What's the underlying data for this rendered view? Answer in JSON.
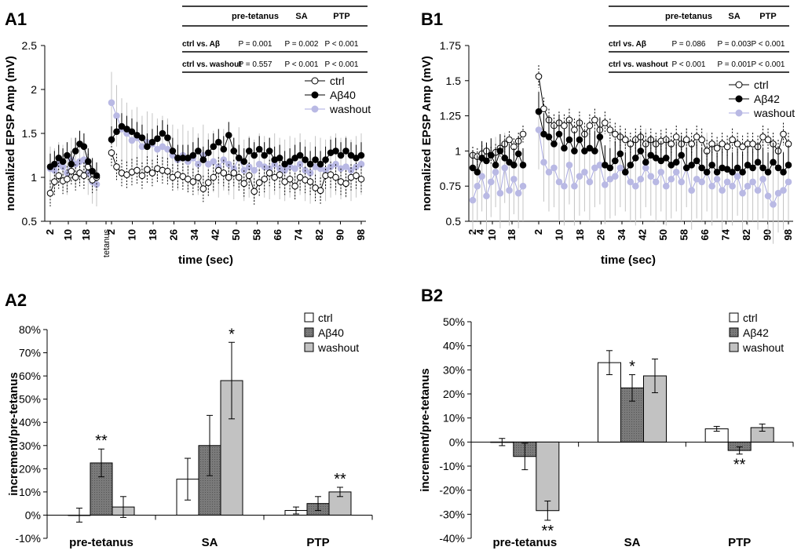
{
  "colors": {
    "ctrl_fill": "#ffffff",
    "abeta_fill": "#000000",
    "washout_line": "#a8a8e0",
    "washout_fill": "#b9b9e4",
    "washout_errbar": "#c4c4c4",
    "bar_abeta": "#7a7a7a",
    "bar_washout": "#c2c2c2",
    "axis": "#000000"
  },
  "chart_data": [
    {
      "panel": "A1",
      "type": "scatter",
      "ylabel": "normalized EPSP Amp (mV)",
      "xlabel": "time (sec)",
      "ylim": [
        0.5,
        2.5
      ],
      "yticks": [
        "0.5",
        "1",
        "1.5",
        "2",
        "2.5"
      ],
      "xticks": [
        "2",
        "10",
        "18",
        "tetanus",
        "2",
        "10",
        "18",
        "26",
        "34",
        "42",
        "50",
        "58",
        "66",
        "74",
        "82",
        "90",
        "98"
      ],
      "segments": [
        {
          "label": "pre-tetanus",
          "n_points": 12,
          "t_start": 2,
          "t_step": 2
        },
        {
          "label": "SA",
          "n_points": 50,
          "t_start": 2,
          "t_step": 2
        }
      ],
      "epoch_labels": {
        "pre": "pre-tetanus",
        "sa": "SA",
        "ptp": "PTP",
        "tetanus": "tetanus"
      },
      "legend": [
        "ctrl",
        "Aβ40",
        "washout"
      ],
      "series": [
        {
          "name": "ctrl",
          "pre": [
            0.82,
            0.95,
            1.02,
            0.96,
            0.98,
            1.07,
            1.0,
            1.05,
            1.02,
            1.12,
            0.97,
            1.0
          ],
          "post": [
            1.28,
            1.12,
            1.05,
            1.03,
            1.06,
            1.08,
            1.02,
            1.09,
            1.05,
            1.1,
            1.08,
            1.07,
            1.0,
            1.03,
            1.01,
            0.98,
            0.95,
            1.0,
            0.87,
            0.94,
            1.0,
            1.08,
            1.05,
            1.0,
            1.05,
            1.0,
            0.93,
            1.02,
            0.84,
            0.94,
            0.98,
            1.05,
            1.0,
            1.03,
            0.95,
            0.98,
            0.9,
            1.0,
            0.97,
            0.95,
            0.88,
            0.85,
            1.02,
            1.03,
            1.0,
            0.95,
            0.93,
            1.0,
            1.02,
            0.98
          ],
          "err_pre": 0.15,
          "err_post": 0.15
        },
        {
          "name": "Aβ40",
          "pre": [
            1.12,
            1.15,
            1.22,
            1.18,
            1.25,
            1.15,
            1.3,
            1.38,
            1.35,
            1.18,
            1.07,
            1.02
          ],
          "post": [
            1.43,
            1.52,
            1.58,
            1.55,
            1.52,
            1.48,
            1.45,
            1.35,
            1.4,
            1.44,
            1.5,
            1.45,
            1.3,
            1.22,
            1.22,
            1.22,
            1.25,
            1.3,
            1.2,
            1.28,
            1.35,
            1.4,
            1.32,
            1.48,
            1.3,
            1.22,
            1.18,
            1.3,
            1.25,
            1.32,
            1.25,
            1.3,
            1.2,
            1.22,
            1.15,
            1.18,
            1.22,
            1.25,
            1.2,
            1.15,
            1.2,
            1.15,
            1.2,
            1.28,
            1.3,
            1.25,
            1.3,
            1.25,
            1.22,
            1.25
          ],
          "err_pre": 0.15,
          "err_post": 0.15
        },
        {
          "name": "washout",
          "pre": [
            1.1,
            1.08,
            1.15,
            1.12,
            1.05,
            1.2,
            1.15,
            1.18,
            1.2,
            1.05,
            0.95,
            0.92
          ],
          "post": [
            1.85,
            1.7,
            1.55,
            1.5,
            1.42,
            1.45,
            1.35,
            1.4,
            1.38,
            1.32,
            1.35,
            1.32,
            1.25,
            1.2,
            1.25,
            1.18,
            1.22,
            1.15,
            1.25,
            1.15,
            1.18,
            1.12,
            1.2,
            1.15,
            1.1,
            1.22,
            1.08,
            1.12,
            1.08,
            1.15,
            1.12,
            1.1,
            1.15,
            1.1,
            1.08,
            1.12,
            1.1,
            1.15,
            1.08,
            1.05,
            1.12,
            1.1,
            1.08,
            1.12,
            1.15,
            1.1,
            1.12,
            1.08,
            1.12,
            1.15
          ],
          "err_pre": 0.25,
          "err_post": 0.35
        }
      ],
      "stats_table": {
        "headers": [
          "pre-tetanus",
          "SA",
          "PTP"
        ],
        "rows": [
          {
            "label": "ctrl vs. Aβ",
            "values": [
              "P = 0.001",
              "P = 0.002",
              "P < 0.001"
            ]
          },
          {
            "label": "ctrl vs. washout",
            "values": [
              "P = 0.557",
              "P < 0.001",
              "P < 0.001"
            ]
          }
        ]
      }
    },
    {
      "panel": "B1",
      "type": "scatter",
      "ylabel": "normalized EPSP Amp (mV)",
      "xlabel": "time (sec)",
      "ylim": [
        0.5,
        1.75
      ],
      "yticks": [
        "0.5",
        "0.75",
        "1",
        "1.25",
        "1.5",
        "1.75"
      ],
      "xticks": [
        "2",
        "4",
        "10",
        "18",
        "2",
        "10",
        "18",
        "26",
        "34",
        "42",
        "50",
        "58",
        "66",
        "74",
        "82",
        "90",
        "98"
      ],
      "segments": [
        {
          "label": "pre-tetanus",
          "n_points": 12,
          "t_start": 2,
          "t_step": 2
        },
        {
          "label": "SA",
          "n_points": 50,
          "t_start": 2,
          "t_step": 2
        }
      ],
      "legend": [
        "ctrl",
        "Aβ42",
        "washout"
      ],
      "series": [
        {
          "name": "ctrl",
          "pre": [
            0.97,
            0.96,
            0.98,
            1.0,
            0.97,
            0.99,
            1.02,
            1.05,
            1.08,
            1.03,
            1.07,
            1.12
          ],
          "post": [
            1.53,
            1.3,
            1.22,
            1.18,
            1.2,
            1.18,
            1.22,
            1.15,
            1.2,
            1.12,
            1.18,
            1.22,
            1.15,
            1.2,
            1.15,
            1.12,
            1.1,
            1.08,
            1.05,
            1.08,
            1.1,
            1.05,
            1.08,
            1.05,
            1.07,
            1.08,
            1.05,
            1.1,
            1.05,
            1.08,
            1.05,
            1.1,
            1.08,
            1.0,
            1.05,
            1.02,
            1.05,
            1.03,
            1.08,
            1.05,
            1.03,
            1.05,
            1.05,
            1.03,
            1.1,
            1.08,
            1.05,
            1.0,
            1.12,
            1.05
          ],
          "err_pre": 0.06,
          "err_post": 0.08
        },
        {
          "name": "Aβ42",
          "pre": [
            0.88,
            0.85,
            0.95,
            0.93,
            0.97,
            0.9,
            1.0,
            0.95,
            0.92,
            0.9,
            0.98,
            0.9
          ],
          "post": [
            1.28,
            1.12,
            1.1,
            1.05,
            1.12,
            1.02,
            1.08,
            1.0,
            1.08,
            1.0,
            1.02,
            1.0,
            1.1,
            0.9,
            0.88,
            0.93,
            0.98,
            0.85,
            0.9,
            0.95,
            1.0,
            0.92,
            0.97,
            0.95,
            0.93,
            0.95,
            0.9,
            0.92,
            0.97,
            0.88,
            0.9,
            0.93,
            0.88,
            0.85,
            0.9,
            0.85,
            0.88,
            0.87,
            0.85,
            0.88,
            0.85,
            0.9,
            0.88,
            0.92,
            0.88,
            0.85,
            0.92,
            0.88,
            0.85,
            0.9
          ],
          "err_pre": 0.12,
          "err_post": 0.14
        },
        {
          "name": "washout",
          "pre": [
            0.65,
            0.75,
            0.82,
            0.68,
            0.78,
            0.85,
            0.7,
            0.88,
            0.72,
            0.8,
            0.7,
            0.75
          ],
          "post": [
            1.15,
            0.92,
            0.85,
            0.88,
            0.78,
            0.75,
            0.9,
            0.75,
            0.82,
            0.85,
            0.78,
            0.88,
            0.9,
            0.76,
            0.8,
            0.82,
            0.88,
            0.85,
            0.78,
            0.75,
            0.8,
            0.88,
            0.82,
            0.78,
            0.85,
            0.75,
            0.8,
            0.85,
            0.78,
            0.88,
            0.72,
            0.8,
            0.78,
            0.85,
            0.75,
            0.8,
            0.72,
            0.78,
            0.75,
            0.82,
            0.7,
            0.75,
            0.78,
            0.72,
            0.8,
            0.68,
            0.62,
            0.7,
            0.72,
            0.78
          ],
          "err_pre": 0.25,
          "err_post": 0.28
        }
      ],
      "stats_table": {
        "headers": [
          "pre-tetanus",
          "SA",
          "PTP"
        ],
        "rows": [
          {
            "label": "ctrl vs. Aβ",
            "values": [
              "P = 0.086",
              "P = 0.003",
              "P < 0.001"
            ]
          },
          {
            "label": "ctrl vs. washout",
            "values": [
              "P < 0.001",
              "P = 0.001",
              "P < 0.001"
            ]
          }
        ]
      }
    },
    {
      "panel": "A2",
      "type": "bar",
      "ylabel": "increment/pre-tetanus",
      "ylim": [
        -10,
        80
      ],
      "yticks": [
        "-10%",
        "0%",
        "10%",
        "20%",
        "30%",
        "40%",
        "50%",
        "60%",
        "70%",
        "80%"
      ],
      "categories": [
        "pre-tetanus",
        "SA",
        "PTP"
      ],
      "series": [
        {
          "name": "ctrl",
          "values": [
            0,
            15.5,
            2
          ],
          "errors": [
            3,
            9,
            1.5
          ]
        },
        {
          "name": "Aβ40",
          "values": [
            22.5,
            30,
            5
          ],
          "errors": [
            6,
            13,
            3
          ]
        },
        {
          "name": "washout",
          "values": [
            3.5,
            58,
            10
          ],
          "errors": [
            4.5,
            16.5,
            2
          ]
        }
      ],
      "annotations": [
        {
          "category": 0,
          "series": 1,
          "text": "**"
        },
        {
          "category": 1,
          "series": 2,
          "text": "*"
        },
        {
          "category": 2,
          "series": 2,
          "text": "**"
        }
      ]
    },
    {
      "panel": "B2",
      "type": "bar",
      "ylabel": "increment/pre-tetanus",
      "ylim": [
        -40,
        50
      ],
      "yticks": [
        "-40%",
        "-30%",
        "-20%",
        "-10%",
        "0%",
        "10%",
        "20%",
        "30%",
        "40%",
        "50%"
      ],
      "categories": [
        "pre-tetanus",
        "SA",
        "PTP"
      ],
      "series": [
        {
          "name": "ctrl",
          "values": [
            0,
            33,
            5.5
          ],
          "errors": [
            1.5,
            5,
            1
          ]
        },
        {
          "name": "Aβ42",
          "values": [
            -6,
            22.5,
            -3.5
          ],
          "errors": [
            5.5,
            5.5,
            1.5
          ]
        },
        {
          "name": "washout",
          "values": [
            -28.5,
            27.5,
            6
          ],
          "errors": [
            4,
            7,
            1.5
          ]
        }
      ],
      "annotations": [
        {
          "category": 0,
          "series": 2,
          "text": "**",
          "below": true
        },
        {
          "category": 1,
          "series": 1,
          "text": "*"
        },
        {
          "category": 2,
          "series": 1,
          "text": "**",
          "below": true
        }
      ]
    }
  ]
}
